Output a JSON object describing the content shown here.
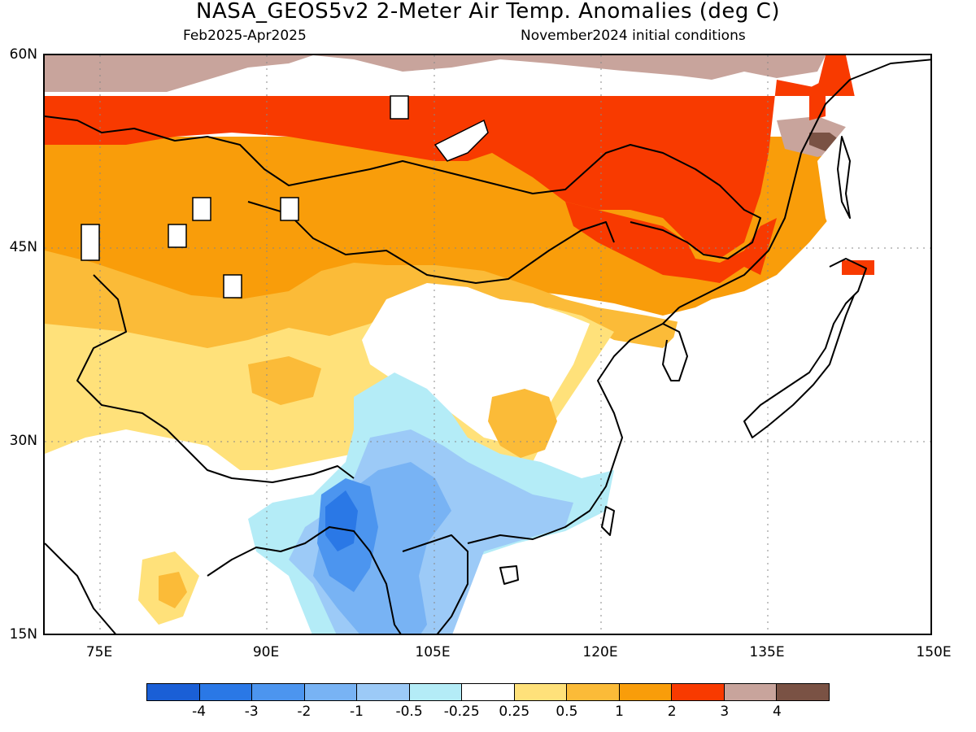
{
  "header": {
    "title": "NASA_GEOS5v2 2-Meter Air Temp. Anomalies (deg C)",
    "period": "Feb2025-Apr2025",
    "init": "November2024 initial conditions"
  },
  "axes": {
    "lat_labels": [
      "60N",
      "45N",
      "30N",
      "15N"
    ],
    "lon_labels": [
      "75E",
      "90E",
      "105E",
      "120E",
      "135E",
      "150E"
    ]
  },
  "colorbar": {
    "colors": [
      "#1a5fd6",
      "#2a78e6",
      "#4c95ef",
      "#78b3f4",
      "#9ccaf7",
      "#b4ecf7",
      "#ffffff",
      "#ffe17a",
      "#fbbb38",
      "#f99d0a",
      "#f83a00",
      "#c8a49c",
      "#7a5244"
    ],
    "labels": [
      "-4",
      "-3",
      "-2",
      "-1",
      "-0.5",
      "-0.25",
      "0.25",
      "0.5",
      "1",
      "2",
      "3",
      "4"
    ]
  },
  "regions": [
    {
      "name": "northwest-corner",
      "category": "3 to 4"
    },
    {
      "name": "siberia-band",
      "category": "2 to 3"
    },
    {
      "name": "mongolia-kazakhstan",
      "category": "1 to 2"
    },
    {
      "name": "manchuria",
      "category": "2 to 3"
    },
    {
      "name": "far-east-coast",
      "category": "3 to 4"
    },
    {
      "name": "northern-china",
      "category": "0.5 to 1"
    },
    {
      "name": "tibet-plateau",
      "category": "0.25 to 0.5"
    },
    {
      "name": "yunnan-myanmar",
      "category": "-3 to -1"
    },
    {
      "name": "southeast-china",
      "category": "-1 to -0.25"
    },
    {
      "name": "hokkaido-east",
      "category": "2 to 3"
    },
    {
      "name": "japan-honshu",
      "category": "0.5 to 1"
    }
  ]
}
